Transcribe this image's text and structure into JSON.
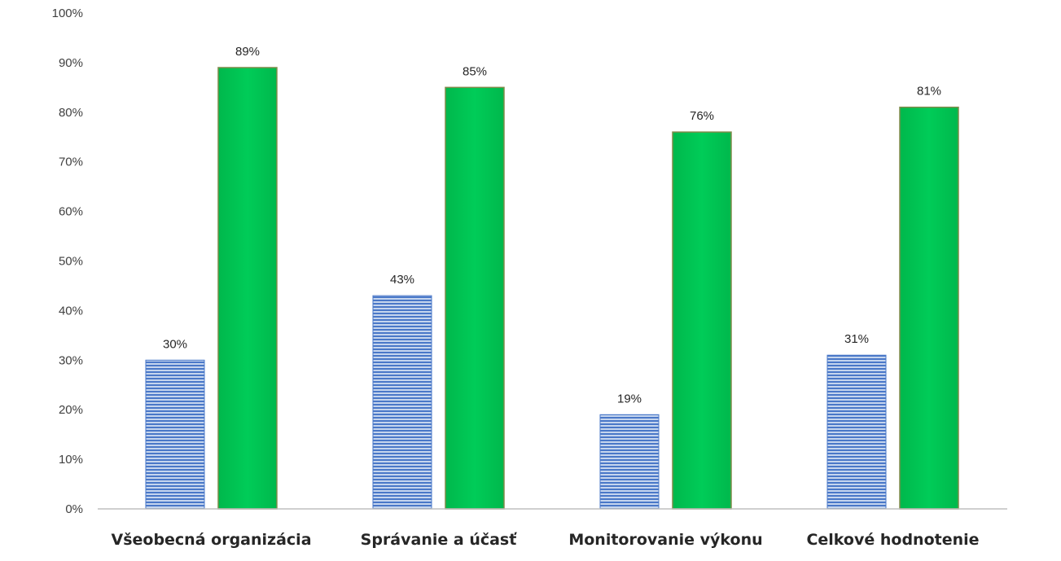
{
  "chart_data": {
    "type": "bar",
    "categories": [
      "Všeobecná organizácia",
      "Správanie a účasť",
      "Monitorovanie výkonu",
      "Celkové hodnotenie"
    ],
    "series": [
      {
        "values": [
          30,
          43,
          19,
          31
        ],
        "color": "#4472c4",
        "pattern": "horizontal-stripes"
      },
      {
        "values": [
          89,
          85,
          76,
          81
        ],
        "color": "#00c853"
      }
    ],
    "data_labels": [
      [
        "30%",
        "43%",
        "19%",
        "31%"
      ],
      [
        "89%",
        "85%",
        "76%",
        "81%"
      ]
    ],
    "y_tick_labels": [
      "0%",
      "10%",
      "20%",
      "30%",
      "40%",
      "50%",
      "60%",
      "70%",
      "80%",
      "90%",
      "100%"
    ],
    "ylim": [
      0,
      100
    ],
    "grid": false,
    "legend": "none"
  }
}
